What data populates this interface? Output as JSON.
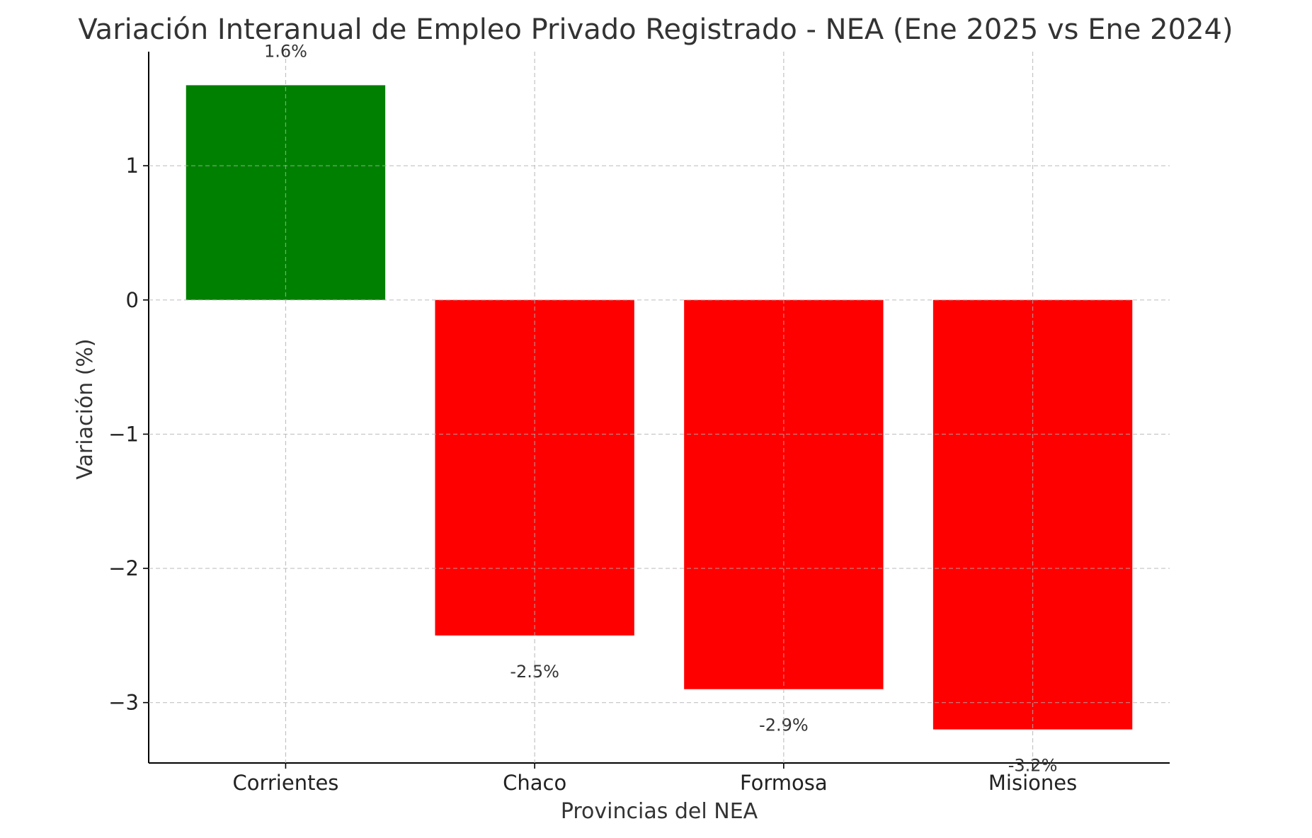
{
  "chart_data": {
    "type": "bar",
    "title": "Variación Interanual de Empleo Privado Registrado - NEA (Ene 2025 vs Ene 2024)",
    "xlabel": "Provincias del NEA",
    "ylabel": "Variación (%)",
    "categories": [
      "Corrientes",
      "Chaco",
      "Formosa",
      "Misiones"
    ],
    "values": [
      1.6,
      -2.5,
      -2.9,
      -3.2
    ],
    "data_labels": [
      "1.6%",
      "-2.5%",
      "-2.9%",
      "-3.2%"
    ],
    "colors": [
      "#008000",
      "#ff0000",
      "#ff0000",
      "#ff0000"
    ],
    "ylim": [
      -3.45,
      1.85
    ],
    "yticks": [
      1,
      0,
      -1,
      -2,
      -3
    ],
    "ytick_labels": [
      "1",
      "0",
      "−1",
      "−2",
      "−3"
    ],
    "grid": true,
    "grid_color": "#b0b0b0",
    "text_color": "#333333"
  }
}
